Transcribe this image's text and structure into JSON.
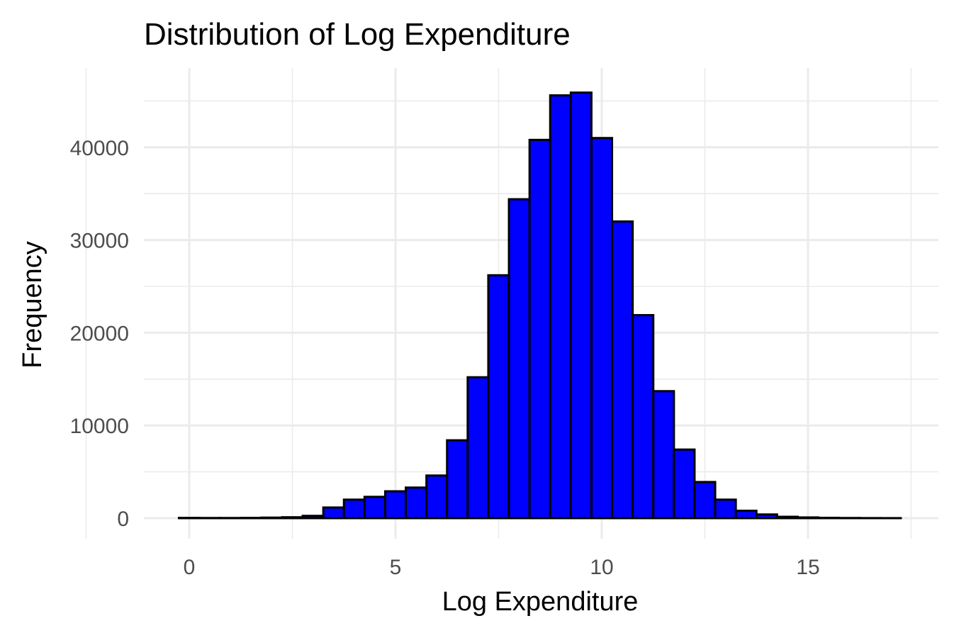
{
  "chart_data": {
    "type": "bar",
    "subtype": "histogram",
    "title": "Distribution of Log Expenditure",
    "xlabel": "Log Expenditure",
    "ylabel": "Frequency",
    "xlim": [
      -0.3,
      17.3
    ],
    "ylim": [
      0,
      46000
    ],
    "x_ticks": [
      0,
      5,
      10,
      15
    ],
    "y_ticks": [
      0,
      10000,
      20000,
      30000,
      40000
    ],
    "x_tick_labels": [
      "0",
      "5",
      "10",
      "15"
    ],
    "y_tick_labels": [
      "0",
      "10000",
      "20000",
      "30000",
      "40000"
    ],
    "grid": true,
    "legend": "none",
    "bin_width": 0.5,
    "bin_centers": [
      0,
      0.5,
      1,
      1.5,
      2,
      2.5,
      3,
      3.5,
      4,
      4.5,
      5,
      5.5,
      6,
      6.5,
      7,
      7.5,
      8,
      8.5,
      9,
      9.5,
      10,
      10.5,
      11,
      11.5,
      12,
      12.5,
      13,
      13.5,
      14,
      14.5,
      15,
      15.5,
      16,
      16.5,
      17
    ],
    "values": [
      30,
      20,
      20,
      30,
      60,
      100,
      250,
      1150,
      2000,
      2300,
      2900,
      3300,
      4600,
      8400,
      15200,
      26200,
      34400,
      40800,
      45600,
      45900,
      41000,
      32000,
      21900,
      13700,
      7400,
      3900,
      2000,
      800,
      400,
      150,
      80,
      40,
      20,
      10,
      5
    ],
    "colors": {
      "fill": "#0000ff",
      "stroke": "#000000",
      "grid": "#ebebeb",
      "tick_text": "#4d4d4d"
    }
  }
}
